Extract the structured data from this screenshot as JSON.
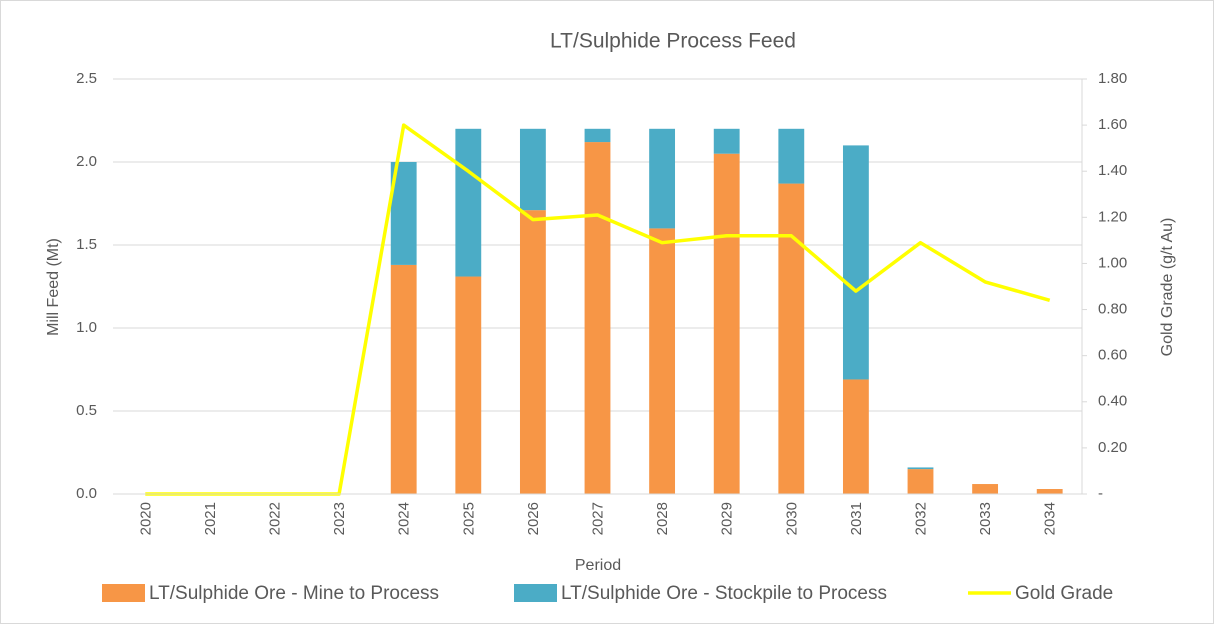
{
  "chart_data": {
    "type": "bar",
    "title": "LT/Sulphide Process Feed",
    "xlabel": "Period",
    "ylabel": "Mill Feed (Mt)",
    "y2label": "Gold Grade (g/t Au)",
    "categories": [
      "2020",
      "2021",
      "2022",
      "2023",
      "2024",
      "2025",
      "2026",
      "2027",
      "2028",
      "2029",
      "2030",
      "2031",
      "2032",
      "2033",
      "2034"
    ],
    "stacked": true,
    "series": [
      {
        "name": "LT/Sulphide Ore - Mine to Process",
        "type": "bar",
        "color": "#F79646",
        "values": [
          0,
          0,
          0,
          0,
          1.38,
          1.31,
          1.71,
          2.12,
          1.6,
          2.05,
          1.87,
          0.69,
          0.15,
          0.06,
          0.03
        ]
      },
      {
        "name": "LT/Sulphide Ore - Stockpile to Process",
        "type": "bar",
        "color": "#4BACC6",
        "values": [
          0,
          0,
          0,
          0,
          0.62,
          0.89,
          0.49,
          0.08,
          0.6,
          0.15,
          0.33,
          1.41,
          0.01,
          0,
          0
        ]
      },
      {
        "name": "Gold Grade",
        "type": "line",
        "axis": "y2",
        "color": "#FFFF00",
        "values": [
          0,
          0,
          0,
          0,
          1.6,
          1.4,
          1.19,
          1.21,
          1.09,
          1.12,
          1.12,
          0.88,
          1.09,
          0.92,
          0.84
        ]
      }
    ],
    "ylim": [
      0,
      2.5
    ],
    "yticks": [
      {
        "value": 0,
        "label": "0.0"
      },
      0.5,
      {
        "value": 1,
        "label": "1.0"
      },
      1.5,
      {
        "value": 2,
        "label": "2.0"
      },
      2.5
    ],
    "y2lim": [
      0,
      1.8
    ],
    "y2ticks": [
      {
        "value": 0,
        "label": "-"
      },
      {
        "value": 0.2,
        "label": "0.20"
      },
      {
        "value": 0.4,
        "label": "0.40"
      },
      {
        "value": 0.6,
        "label": "0.60"
      },
      {
        "value": 0.8,
        "label": "0.80"
      },
      {
        "value": 1,
        "label": "1.00"
      },
      {
        "value": 1.2,
        "label": "1.20"
      },
      {
        "value": 1.4,
        "label": "1.40"
      },
      {
        "value": 1.6,
        "label": "1.60"
      },
      {
        "value": 1.8,
        "label": "1.80"
      }
    ],
    "grid": true,
    "legend": "bottom"
  }
}
